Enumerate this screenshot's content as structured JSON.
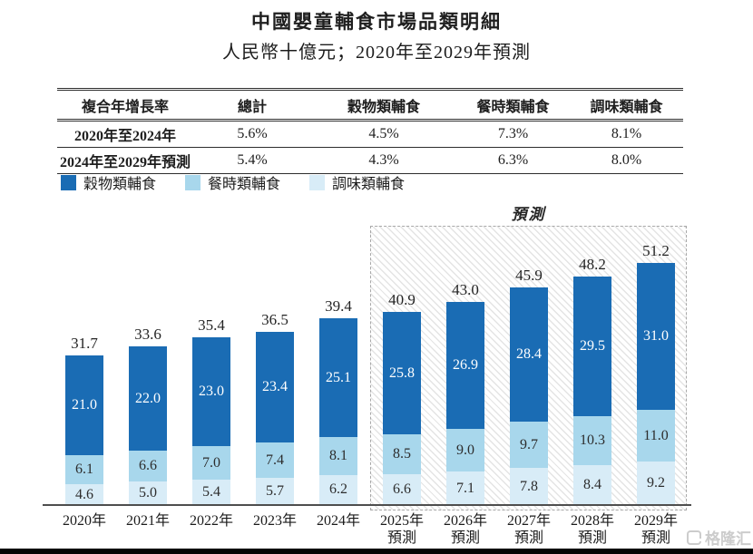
{
  "title": "中國嬰童輔食市場品類明細",
  "subtitle": "人民幣十億元；2020年至2029年預測",
  "cagr_table": {
    "headers": [
      "複合年增長率",
      "總計",
      "穀物類輔食",
      "餐時類輔食",
      "調味類輔食"
    ],
    "rows": [
      {
        "label": "2020年至2024年",
        "values": [
          "5.6%",
          "4.5%",
          "7.3%",
          "8.1%"
        ]
      },
      {
        "label": "2024年至2029年預測",
        "values": [
          "5.4%",
          "4.3%",
          "6.3%",
          "8.0%"
        ]
      }
    ]
  },
  "legend": [
    {
      "label": "穀物類輔食",
      "color": "#1a6cb4"
    },
    {
      "label": "餐時類輔食",
      "color": "#a8d7ec"
    },
    {
      "label": "調味類輔食",
      "color": "#d8ecf7"
    }
  ],
  "forecast_label": "預測",
  "watermark": "格隆汇",
  "colors": {
    "grain": "#1a6cb4",
    "mealtime": "#a8d7ec",
    "seasoning": "#d8ecf7",
    "axis": "#4e4e4e",
    "segment_text_dark": "#2d2d2d",
    "segment_text_light": "#ffffff"
  },
  "chart_data": {
    "type": "bar",
    "stacked": true,
    "title": "中國嬰童輔食市場品類明細",
    "unit_label": "人民幣十億元",
    "categories": [
      "2020年",
      "2021年",
      "2022年",
      "2023年",
      "2024年",
      "2025年預測",
      "2026年預測",
      "2027年預測",
      "2028年預測",
      "2029年預測"
    ],
    "series": [
      {
        "name": "穀物類輔食",
        "color": "#1a6cb4",
        "values": [
          21.0,
          22.0,
          23.0,
          23.4,
          25.1,
          25.8,
          26.9,
          28.4,
          29.5,
          31.0
        ]
      },
      {
        "name": "餐時類輔食",
        "color": "#a8d7ec",
        "values": [
          6.1,
          6.6,
          7.0,
          7.4,
          8.1,
          8.5,
          9.0,
          9.7,
          10.3,
          11.0
        ]
      },
      {
        "name": "調味類輔食",
        "color": "#d8ecf7",
        "values": [
          4.6,
          5.0,
          5.4,
          5.7,
          6.2,
          6.6,
          7.1,
          7.8,
          8.4,
          9.2
        ]
      }
    ],
    "totals": [
      31.7,
      33.6,
      35.4,
      36.5,
      39.4,
      40.9,
      43.0,
      45.9,
      48.2,
      51.2
    ],
    "forecast_from_index": 5,
    "forecast_region_label": "預測",
    "ylim": [
      0,
      52
    ],
    "grid": false,
    "legend_position": "top-left",
    "value_labels": "inside-segments-and-total-above"
  }
}
